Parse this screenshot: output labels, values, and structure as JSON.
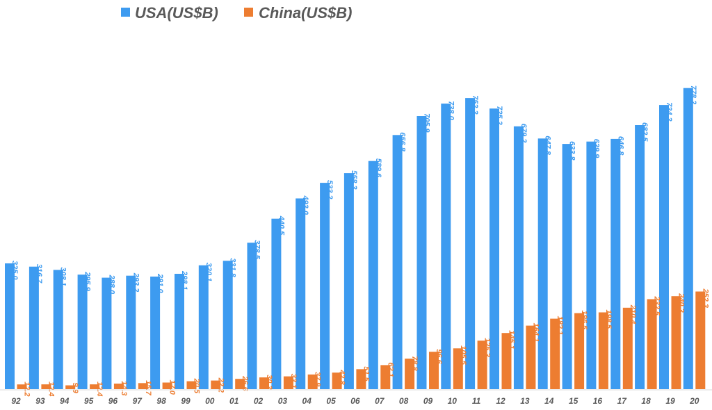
{
  "chart_data": {
    "type": "bar",
    "categories": [
      "92",
      "93",
      "94",
      "95",
      "96",
      "97",
      "98",
      "99",
      "00",
      "01",
      "02",
      "03",
      "04",
      "05",
      "06",
      "07",
      "08",
      "09",
      "10",
      "11",
      "12",
      "13",
      "14",
      "15",
      "16",
      "17",
      "18",
      "19",
      "20"
    ],
    "series": [
      {
        "name": "USA(US$B)",
        "color": "#3d9bf0",
        "values": [
          325.0,
          316.7,
          308.1,
          295.9,
          288.0,
          293.2,
          291.0,
          298.1,
          320.1,
          331.8,
          378.5,
          440.5,
          493.0,
          533.2,
          558.3,
          589.6,
          656.8,
          705.9,
          738.0,
          752.3,
          725.2,
          679.2,
          647.8,
          633.8,
          639.9,
          646.8,
          682.5,
          734.3,
          778.2
        ],
        "labels": [
          "325.0",
          "316.7",
          "308.1",
          "295.9",
          "288.0",
          "293.2",
          "291.0",
          "298.1",
          "320.1",
          "331.8",
          "378.5",
          "440.5",
          "493.0",
          "533.2",
          "558.3",
          "589.6",
          "656.8",
          "705.9",
          "738.0",
          "752.3",
          "725.2",
          "679.2",
          "647.8",
          "633.8",
          "639.9",
          "646.8",
          "682.5",
          "734.3",
          "778.2"
        ]
      },
      {
        "name": "China(US$B)",
        "color": "#ed7d31",
        "values": [
          12.2,
          12.4,
          9.9,
          12.4,
          14.3,
          15.7,
          17.0,
          20.5,
          22.2,
          26.6,
          30.3,
          33.1,
          37.9,
          42.8,
          51.5,
          62.1,
          78.8,
          96.6,
          105.5,
          125.3,
          145.1,
          164.1,
          182.1,
          196.5,
          198.5,
          210.4,
          232.5,
          240.3,
          252.3
        ],
        "labels": [
          "12.2",
          "12.4",
          "9.9",
          "12.4",
          "14.3",
          "15.7",
          "17.0",
          "20.5",
          "22.2",
          "26.6",
          "30.3",
          "33.1",
          "37.9",
          "42.8",
          "51.5",
          "62.1",
          "78.8",
          "96.6",
          "105.5",
          "125.3",
          "145.1",
          "164.1",
          "182.1",
          "196.5",
          "198.5",
          "210.4",
          "232.5",
          "240.3",
          "252.3"
        ]
      }
    ],
    "ylim": [
      0,
      800
    ],
    "grid": false,
    "legend_position": "top-left"
  }
}
